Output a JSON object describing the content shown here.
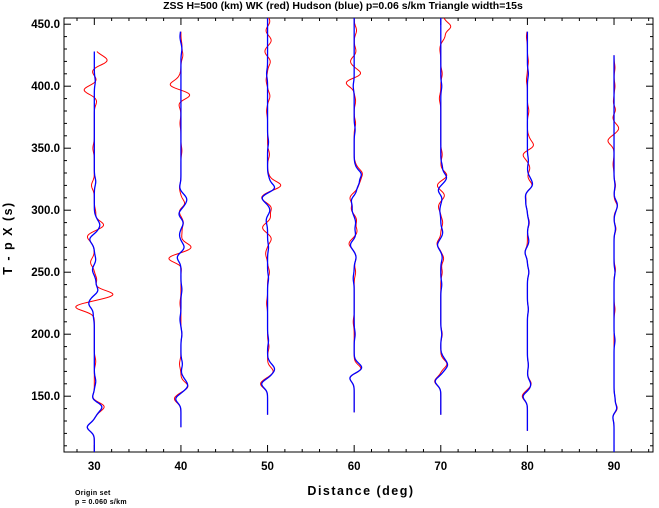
{
  "chart_data": {
    "type": "line",
    "title": "ZSS H=500 (km) WK (red) Hudson (blue) p=0.06 s/km Triangle width=15s",
    "xlabel": "Distance (deg)",
    "ylabel": "T - p X (s)",
    "xlim": [
      26.5,
      94.5
    ],
    "ylim": [
      105,
      455
    ],
    "x_ticks": [
      30,
      40,
      50,
      60,
      70,
      80,
      90
    ],
    "x_tick_labels": [
      "30",
      "40",
      "50",
      "60",
      "70",
      "80",
      "90"
    ],
    "y_ticks": [
      150,
      200,
      250,
      300,
      350,
      400,
      450
    ],
    "y_tick_labels": [
      "150.0",
      "200.0",
      "250.0",
      "300.0",
      "350.0",
      "400.0",
      "450.0"
    ],
    "grid": false,
    "legend": "none",
    "colors": {
      "wk": "#ff0000",
      "hudson": "#0000ff"
    },
    "series": [
      {
        "name": "WK",
        "color": "#ff0000"
      },
      {
        "name": "Hudson",
        "color": "#0000ff"
      }
    ],
    "traces": [
      {
        "distance": 30,
        "start": [
          105,
          428
        ],
        "hudson": [
          [
            125,
            -1.5
          ],
          [
            137,
            0.5
          ],
          [
            142,
            1.5
          ],
          [
            148,
            -0.5
          ],
          [
            162,
            0.3
          ],
          [
            215,
            -0.2
          ],
          [
            224,
            -1.0
          ],
          [
            229,
            -0.5
          ],
          [
            235,
            0.8
          ],
          [
            243,
            0.3
          ],
          [
            252,
            -0.4
          ],
          [
            260,
            0.3
          ],
          [
            275,
            -0.4
          ],
          [
            278,
            -0.8
          ],
          [
            282,
            0.5
          ],
          [
            288,
            1.0
          ],
          [
            293,
            0.3
          ],
          [
            323,
            0.3
          ],
          [
            404,
            0.2
          ]
        ],
        "wk": [
          [
            125,
            -1.5
          ],
          [
            137,
            0.5
          ],
          [
            142,
            2.0
          ],
          [
            148,
            -0.5
          ],
          [
            178,
            0.3
          ],
          [
            222,
            -4.0
          ],
          [
            232,
            4.0
          ],
          [
            244,
            0.5
          ],
          [
            258,
            -0.8
          ],
          [
            274,
            -0.3
          ],
          [
            279,
            -1.4
          ],
          [
            288,
            2.0
          ],
          [
            298,
            0.3
          ],
          [
            320,
            -0.6
          ],
          [
            350,
            -0.3
          ],
          [
            388,
            0.5
          ],
          [
            397,
            -2.2
          ],
          [
            405,
            0.5
          ],
          [
            412,
            -0.5
          ],
          [
            420,
            2.2
          ],
          [
            424,
            1.0
          ]
        ]
      },
      {
        "distance": 40,
        "start": [
          125,
          444
        ],
        "hudson": [
          [
            148,
            -1.2
          ],
          [
            152,
            0.2
          ],
          [
            158,
            1.2
          ],
          [
            163,
            0.6
          ],
          [
            176,
            0.3
          ],
          [
            200,
            0.2
          ],
          [
            212,
            -0.2
          ],
          [
            236,
            0.2
          ],
          [
            262,
            -0.8
          ],
          [
            270,
            0.7
          ],
          [
            280,
            -0.3
          ],
          [
            290,
            0.5
          ],
          [
            297,
            -0.5
          ],
          [
            304,
            0.5
          ],
          [
            309,
            1.0
          ],
          [
            313,
            0.2
          ],
          [
            318,
            -0.3
          ],
          [
            430,
            0.2
          ],
          [
            440,
            -0.2
          ]
        ],
        "wk": [
          [
            148,
            -1.4
          ],
          [
            158,
            1.5
          ],
          [
            176,
            -0.3
          ],
          [
            200,
            0.2
          ],
          [
            225,
            -0.2
          ],
          [
            256,
            0.3
          ],
          [
            261,
            -2.7
          ],
          [
            270,
            2.2
          ],
          [
            282,
            0.2
          ],
          [
            290,
            0.5
          ],
          [
            300,
            -0.5
          ],
          [
            305,
            0.9
          ],
          [
            318,
            -0.3
          ],
          [
            348,
            0.2
          ],
          [
            370,
            -0.2
          ],
          [
            386,
            -0.5
          ],
          [
            393,
            2.0
          ],
          [
            401,
            -2.3
          ],
          [
            407,
            -0.3
          ],
          [
            425,
            0.4
          ],
          [
            433,
            0.2
          ]
        ]
      },
      {
        "distance": 50,
        "start": [
          135,
          455
        ],
        "hudson": [
          [
            160,
            -1.3
          ],
          [
            167,
            0.5
          ],
          [
            172,
            1.2
          ],
          [
            176,
            0.3
          ],
          [
            195,
            0.2
          ],
          [
            245,
            0.2
          ],
          [
            270,
            0.2
          ],
          [
            292,
            -0.3
          ],
          [
            300,
            0.5
          ],
          [
            310,
            -1.2
          ],
          [
            318,
            1.5
          ],
          [
            325,
            0.3
          ],
          [
            355,
            0.2
          ],
          [
            410,
            -0.2
          ]
        ],
        "wk": [
          [
            160,
            -1.5
          ],
          [
            170,
            1.2
          ],
          [
            190,
            0.3
          ],
          [
            225,
            -0.2
          ],
          [
            250,
            0.4
          ],
          [
            265,
            -0.4
          ],
          [
            277,
            0.8
          ],
          [
            286,
            -1.1
          ],
          [
            294,
            0.6
          ],
          [
            302,
            0.8
          ],
          [
            310,
            -1.3
          ],
          [
            320,
            2.8
          ],
          [
            327,
            0.3
          ],
          [
            345,
            0.4
          ],
          [
            380,
            -0.2
          ],
          [
            392,
            0.5
          ],
          [
            405,
            -0.3
          ],
          [
            420,
            0.6
          ],
          [
            428,
            -0.6
          ],
          [
            437,
            0.8
          ],
          [
            445,
            -0.4
          ],
          [
            452,
            0.5
          ]
        ]
      },
      {
        "distance": 60,
        "start": [
          137,
          455
        ],
        "hudson": [
          [
            165,
            -1.0
          ],
          [
            172,
            1.2
          ],
          [
            175,
            0.6
          ],
          [
            200,
            0.2
          ],
          [
            245,
            -0.2
          ],
          [
            262,
            0.4
          ],
          [
            272,
            -0.8
          ],
          [
            280,
            0.3
          ],
          [
            290,
            0.3
          ],
          [
            300,
            -0.4
          ],
          [
            308,
            -0.6
          ],
          [
            315,
            0.4
          ],
          [
            322,
            0.9
          ],
          [
            329,
            1.4
          ],
          [
            335,
            0.2
          ],
          [
            365,
            0.2
          ],
          [
            400,
            -0.2
          ]
        ],
        "wk": [
          [
            165,
            -1.0
          ],
          [
            172,
            1.5
          ],
          [
            210,
            -0.2
          ],
          [
            250,
            0.3
          ],
          [
            262,
            0.4
          ],
          [
            273,
            -1.1
          ],
          [
            283,
            0.6
          ],
          [
            292,
            0.5
          ],
          [
            301,
            -0.6
          ],
          [
            310,
            -0.9
          ],
          [
            318,
            0.6
          ],
          [
            324,
            1.0
          ],
          [
            330,
            1.5
          ],
          [
            336,
            0.3
          ],
          [
            370,
            0.3
          ],
          [
            388,
            0.3
          ],
          [
            403,
            -1.8
          ],
          [
            410,
            1.5
          ],
          [
            420,
            -0.8
          ],
          [
            428,
            0.4
          ],
          [
            445,
            0.5
          ]
        ]
      },
      {
        "distance": 70,
        "start": [
          135,
          455
        ],
        "hudson": [
          [
            162,
            -1.2
          ],
          [
            170,
            0.3
          ],
          [
            175,
            1.2
          ],
          [
            180,
            0.5
          ],
          [
            200,
            0.2
          ],
          [
            240,
            0.2
          ],
          [
            262,
            0.3
          ],
          [
            272,
            -0.7
          ],
          [
            282,
            0.4
          ],
          [
            300,
            -0.2
          ],
          [
            310,
            0.3
          ],
          [
            316,
            -0.6
          ],
          [
            323,
            0.4
          ],
          [
            327,
            1.0
          ],
          [
            335,
            0.3
          ],
          [
            400,
            0.2
          ]
        ],
        "wk": [
          [
            162,
            -1.3
          ],
          [
            176,
            1.3
          ],
          [
            200,
            0.3
          ],
          [
            250,
            0.3
          ],
          [
            261,
            0.6
          ],
          [
            273,
            -0.8
          ],
          [
            290,
            0.4
          ],
          [
            303,
            -0.5
          ],
          [
            312,
            0.8
          ],
          [
            320,
            -0.8
          ],
          [
            328,
            1.3
          ],
          [
            345,
            0.3
          ],
          [
            390,
            -0.3
          ],
          [
            410,
            0.3
          ],
          [
            430,
            -0.2
          ],
          [
            440,
            0.8
          ],
          [
            448,
            2.0
          ],
          [
            454,
            0.5
          ]
        ]
      },
      {
        "distance": 80,
        "start": [
          122,
          444
        ],
        "hudson": [
          [
            150,
            -1.0
          ],
          [
            155,
            0.3
          ],
          [
            160,
            0.6
          ],
          [
            175,
            0.2
          ],
          [
            220,
            0.2
          ],
          [
            250,
            0.3
          ],
          [
            266,
            -0.5
          ],
          [
            275,
            0.3
          ],
          [
            290,
            0.3
          ],
          [
            305,
            -0.3
          ],
          [
            312,
            -0.4
          ],
          [
            320,
            0.9
          ],
          [
            325,
            0.5
          ],
          [
            340,
            0.2
          ],
          [
            410,
            0.2
          ]
        ],
        "wk": [
          [
            150,
            -1.1
          ],
          [
            160,
            0.8
          ],
          [
            175,
            0.2
          ],
          [
            220,
            0.2
          ],
          [
            250,
            0.3
          ],
          [
            266,
            -0.5
          ],
          [
            290,
            0.4
          ],
          [
            305,
            -0.3
          ],
          [
            313,
            -0.4
          ],
          [
            320,
            1.0
          ],
          [
            334,
            0.5
          ],
          [
            345,
            -1.0
          ],
          [
            352,
            1.3
          ],
          [
            358,
            0.3
          ],
          [
            380,
            0.3
          ],
          [
            405,
            -0.2
          ],
          [
            420,
            0.2
          ],
          [
            440,
            -0.2
          ]
        ]
      },
      {
        "distance": 90,
        "start": [
          105,
          425
        ],
        "hudson": [
          [
            134,
            -0.3
          ],
          [
            140,
            0.6
          ],
          [
            148,
            0.2
          ],
          [
            195,
            0.2
          ],
          [
            250,
            0.2
          ],
          [
            285,
            0.3
          ],
          [
            300,
            0.3
          ],
          [
            305,
            0.6
          ],
          [
            320,
            0.2
          ]
        ],
        "wk": [
          [
            134,
            -0.3
          ],
          [
            140,
            0.7
          ],
          [
            148,
            0.2
          ],
          [
            220,
            0.2
          ],
          [
            252,
            0.3
          ],
          [
            285,
            0.4
          ],
          [
            303,
            0.7
          ],
          [
            320,
            0.3
          ],
          [
            337,
            -0.2
          ],
          [
            356,
            -1.3
          ],
          [
            366,
            1.0
          ],
          [
            375,
            -0.3
          ],
          [
            381,
            0.4
          ],
          [
            386,
            -0.2
          ],
          [
            400,
            0.2
          ],
          [
            415,
            0.2
          ]
        ]
      }
    ]
  },
  "footnote": {
    "line1": "Origin set",
    "line2": "p =  0.060 s/km"
  }
}
